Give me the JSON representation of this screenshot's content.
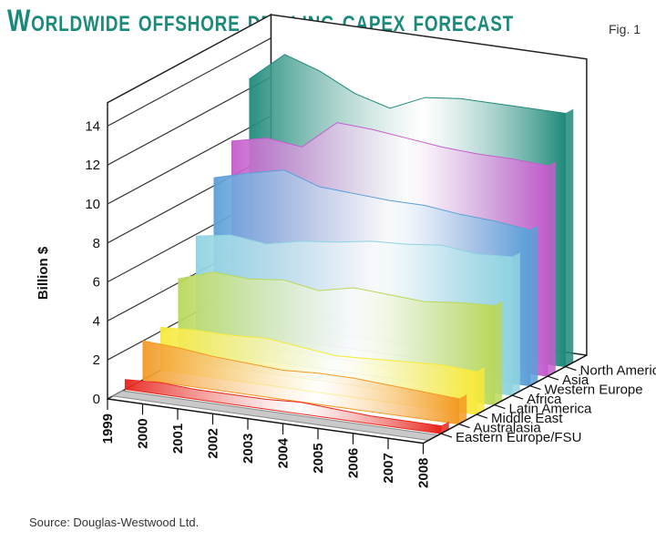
{
  "title": "Worldwide offshore drilling capex forecast",
  "figure_label": "Fig. 1",
  "source": "Source: Douglas-Westwood Ltd.",
  "chart_data": {
    "type": "area",
    "title": "Worldwide offshore drilling capex forecast",
    "ylabel": "Billion $",
    "xlabel": "",
    "ylim": [
      0,
      14
    ],
    "yticks": [
      0,
      2,
      4,
      6,
      8,
      10,
      12,
      14
    ],
    "grid": true,
    "categories": [
      "1999",
      "2000",
      "2001",
      "2002",
      "2003",
      "2004",
      "2005",
      "2006",
      "2007",
      "2008"
    ],
    "series": [
      {
        "name": "Eastern Europe/FSU",
        "color": "#e8241c",
        "values": [
          0.5,
          0.6,
          0.5,
          0.5,
          0.5,
          0.6,
          0.5,
          0.4,
          0.4,
          0.4
        ]
      },
      {
        "name": "Australasia",
        "color": "#f39a23",
        "values": [
          2.0,
          1.9,
          1.7,
          1.6,
          1.5,
          1.6,
          1.6,
          1.5,
          1.4,
          1.3
        ]
      },
      {
        "name": "Middle East",
        "color": "#f7e93a",
        "values": [
          2.2,
          2.3,
          2.3,
          2.4,
          2.2,
          2.0,
          2.1,
          2.2,
          2.3,
          2.2
        ]
      },
      {
        "name": "Latin America",
        "color": "#b9d85a",
        "values": [
          4.2,
          4.8,
          4.7,
          4.9,
          4.6,
          5.0,
          4.9,
          4.8,
          5.0,
          5.1
        ]
      },
      {
        "name": "Africa",
        "color": "#8fd3e0",
        "values": [
          5.9,
          6.2,
          6.0,
          6.4,
          6.6,
          6.9,
          7.0,
          7.2,
          7.0,
          7.1
        ]
      },
      {
        "name": "Western Europe",
        "color": "#5b9fd8",
        "values": [
          8.4,
          8.9,
          9.3,
          8.7,
          8.6,
          8.5,
          8.5,
          8.3,
          8.2,
          8.0
        ]
      },
      {
        "name": "Asia",
        "color": "#c45ccc",
        "values": [
          9.8,
          10.2,
          10.0,
          11.5,
          11.4,
          11.2,
          11.0,
          10.9,
          10.9,
          10.8
        ]
      },
      {
        "name": "North America",
        "color": "#1f8a7a",
        "values": [
          12.5,
          14.0,
          13.4,
          12.5,
          12.0,
          12.8,
          13.0,
          13.0,
          13.0,
          13.0
        ]
      }
    ]
  }
}
